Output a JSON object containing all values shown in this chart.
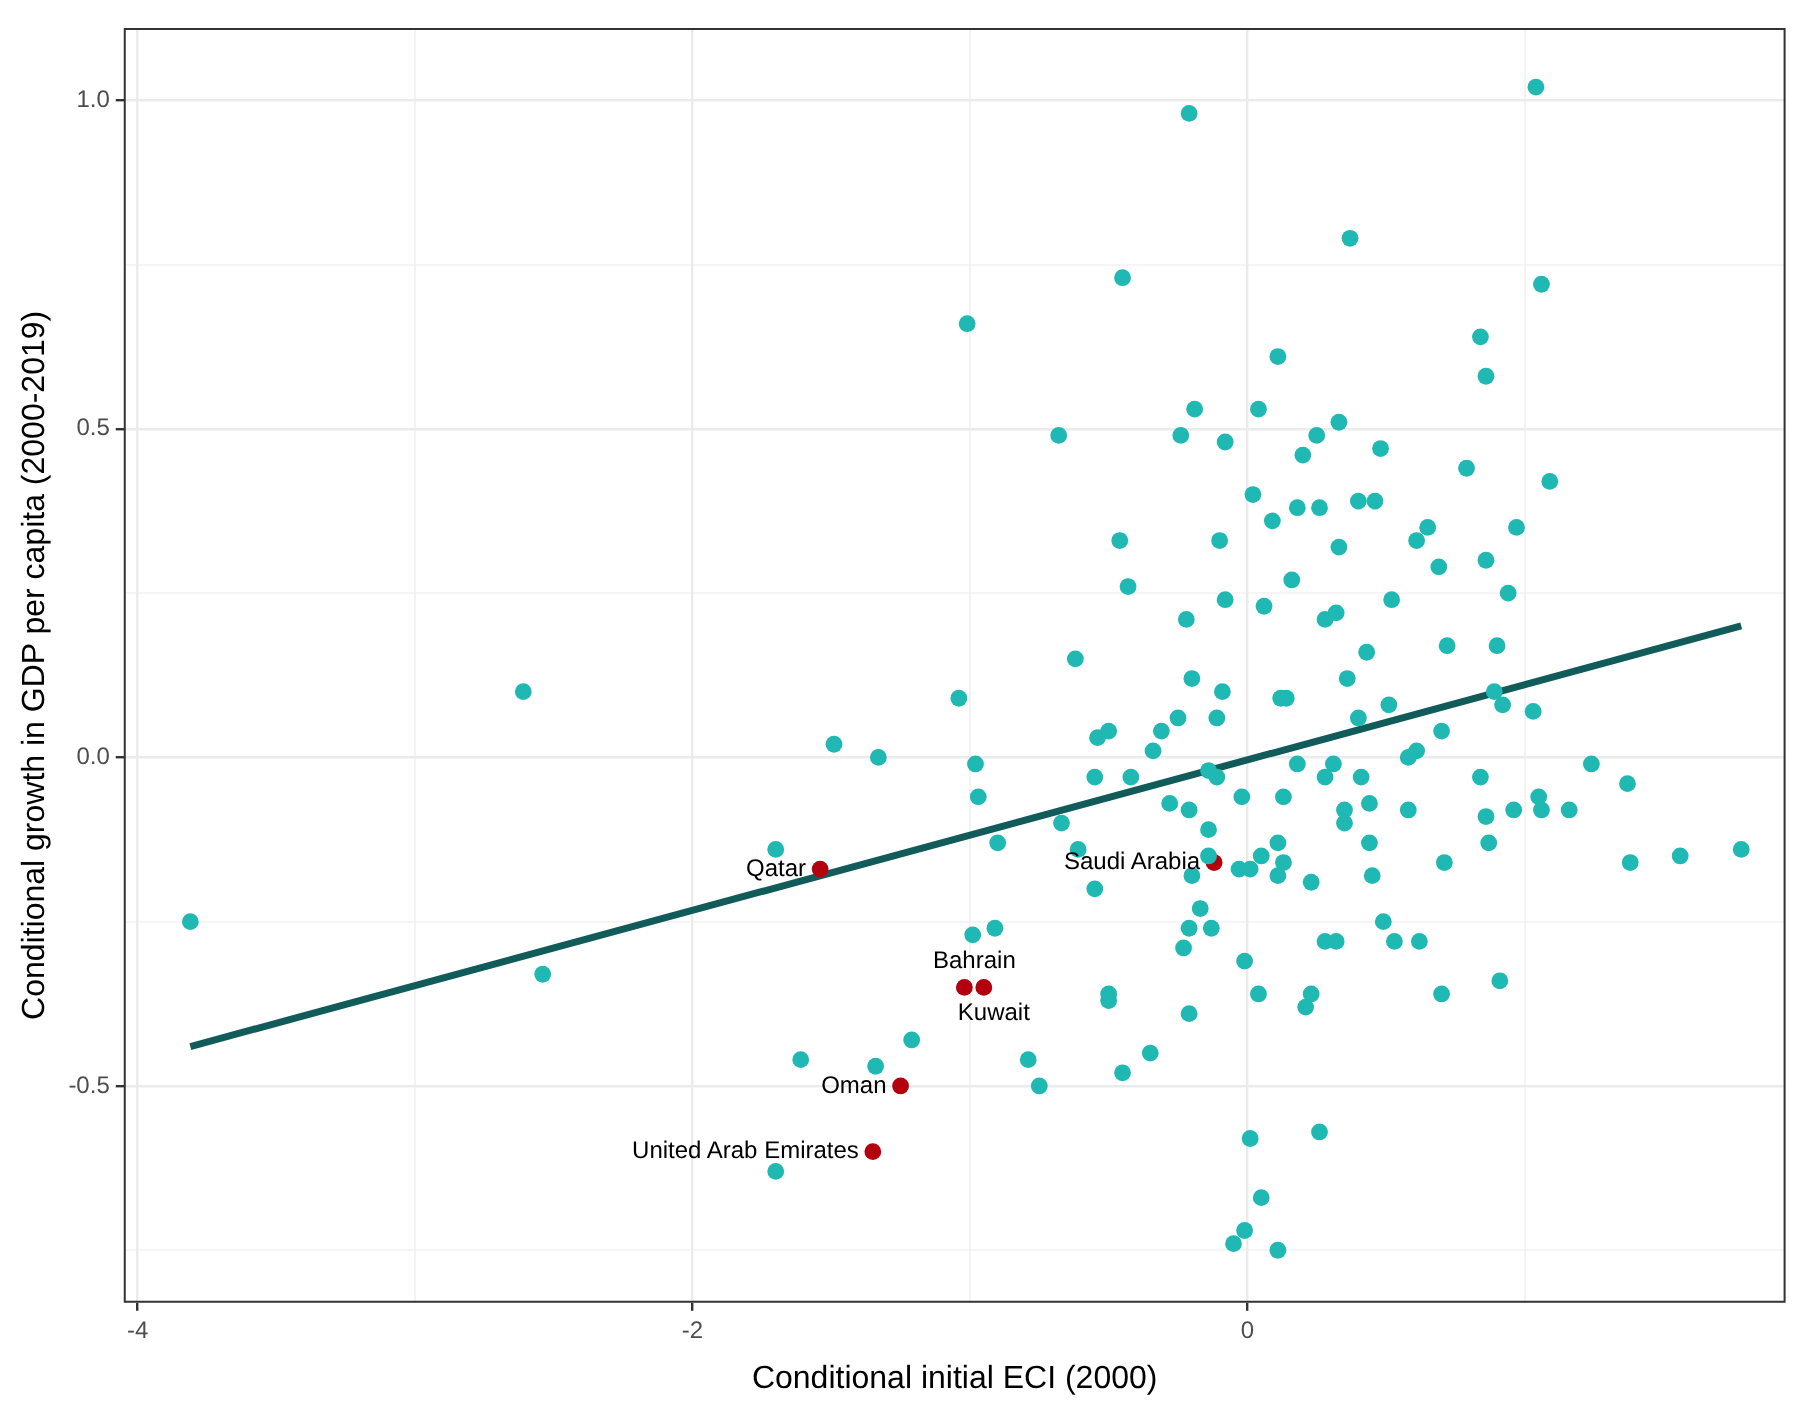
{
  "chart_data": {
    "type": "scatter",
    "xlabel": "Conditional initial ECI (2000)",
    "ylabel": "Conditional growth in GDP per capita (2000-2019)",
    "xlim": [
      -4.05,
      1.94
    ],
    "ylim": [
      -0.83,
      1.11
    ],
    "xticks": [
      -4,
      {
        "value": -3,
        "label": null
      },
      -2,
      {
        "value": -1,
        "label": null
      },
      0,
      {
        "value": 1,
        "label": null
      }
    ],
    "yticks": [
      {
        "value": -0.75,
        "label": null
      },
      -0.5,
      {
        "value": -0.25,
        "label": null
      },
      {
        "value": 0,
        "label": "0.0"
      },
      {
        "value": 0.25,
        "label": null
      },
      0.5,
      {
        "value": 0.75,
        "label": null
      },
      {
        "value": 1,
        "label": "1.0"
      }
    ],
    "grid": true,
    "marker": "circle",
    "series": [
      {
        "color": "#20b8b2",
        "x": [
          1.04,
          -0.21,
          0.37,
          -0.45,
          1.06,
          -1.01,
          0.84,
          0.11,
          0.86,
          -0.19,
          0.04,
          -0.68,
          -0.24,
          -0.08,
          0.33,
          0.25,
          0.2,
          0.48,
          0.79,
          1.09,
          0.02,
          0.18,
          0.26,
          0.4,
          0.46,
          0.09,
          -0.46,
          -0.1,
          0.65,
          0.61,
          0.97,
          0.33,
          0.69,
          0.86,
          -0.43,
          0.16,
          -0.08,
          0.06,
          0.52,
          0.94,
          -0.22,
          0.28,
          0.32,
          0.72,
          0.9,
          0.43,
          -0.62,
          -1.04,
          -0.2,
          -0.09,
          0.36,
          0.12,
          0.14,
          0.51,
          -0.25,
          -0.11,
          0.4,
          0.89,
          0.92,
          1.03,
          -0.5,
          -0.54,
          -0.31,
          0.7,
          -0.34,
          0.61,
          0.58,
          -1.33,
          -0.98,
          -0.14,
          -0.11,
          0.18,
          0.31,
          -0.55,
          -0.42,
          0.28,
          0.41,
          0.84,
          1.24,
          1.37,
          -0.97,
          -0.02,
          0.13,
          -0.28,
          -0.21,
          0.35,
          0.44,
          0.58,
          0.86,
          0.96,
          1.05,
          1.06,
          1.16,
          0.35,
          -0.67,
          -0.14,
          -0.9,
          0.11,
          0.44,
          0.87,
          -0.61,
          -0.14,
          0.05,
          0.13,
          -0.03,
          0.01,
          0.71,
          1.38,
          1.56,
          1.78,
          -0.2,
          0.11,
          0.23,
          0.45,
          -0.55,
          -0.17,
          0.49,
          -0.99,
          -0.91,
          -0.21,
          -0.13,
          -0.23,
          0.28,
          0.32,
          0.53,
          0.62,
          -0.01,
          0.91,
          -0.5,
          -0.5,
          0.04,
          0.23,
          0.7,
          -0.21,
          0.21,
          -1.21,
          -1.34,
          -0.79,
          -0.35,
          -0.45,
          -0.75,
          0.01,
          0.26,
          0.05,
          -0.01,
          -0.05,
          0.11,
          -2.61,
          -1.49,
          -1.7,
          -3.81,
          -2.54,
          -1.61,
          -1.7
        ],
        "values": [
          1.02,
          0.98,
          0.79,
          0.73,
          0.72,
          0.66,
          0.64,
          0.61,
          0.58,
          0.53,
          0.53,
          0.49,
          0.49,
          0.48,
          0.51,
          0.49,
          0.46,
          0.47,
          0.44,
          0.42,
          0.4,
          0.38,
          0.38,
          0.39,
          0.39,
          0.36,
          0.33,
          0.33,
          0.35,
          0.33,
          0.35,
          0.32,
          0.29,
          0.3,
          0.26,
          0.27,
          0.24,
          0.23,
          0.24,
          0.25,
          0.21,
          0.21,
          0.22,
          0.17,
          0.17,
          0.16,
          0.15,
          0.09,
          0.12,
          0.1,
          0.12,
          0.09,
          0.09,
          0.08,
          0.06,
          0.06,
          0.06,
          0.1,
          0.08,
          0.07,
          0.04,
          0.03,
          0.04,
          0.04,
          0.01,
          0.01,
          0,
          0,
          -0.01,
          -0.02,
          -0.03,
          -0.01,
          -0.01,
          -0.03,
          -0.03,
          -0.03,
          -0.03,
          -0.03,
          -0.01,
          -0.04,
          -0.06,
          -0.06,
          -0.06,
          -0.07,
          -0.08,
          -0.08,
          -0.07,
          -0.08,
          -0.09,
          -0.08,
          -0.06,
          -0.08,
          -0.08,
          -0.1,
          -0.1,
          -0.11,
          -0.13,
          -0.13,
          -0.13,
          -0.13,
          -0.14,
          -0.15,
          -0.15,
          -0.16,
          -0.17,
          -0.17,
          -0.16,
          -0.16,
          -0.15,
          -0.14,
          -0.18,
          -0.18,
          -0.19,
          -0.18,
          -0.2,
          -0.23,
          -0.25,
          -0.27,
          -0.26,
          -0.26,
          -0.26,
          -0.29,
          -0.28,
          -0.28,
          -0.28,
          -0.28,
          -0.31,
          -0.34,
          -0.36,
          -0.37,
          -0.36,
          -0.36,
          -0.36,
          -0.39,
          -0.38,
          -0.43,
          -0.47,
          -0.46,
          -0.45,
          -0.48,
          -0.5,
          -0.58,
          -0.57,
          -0.67,
          -0.72,
          -0.74,
          -0.75,
          0.1,
          0.02,
          -0.14,
          -0.25,
          -0.33,
          -0.46,
          -0.63
        ]
      },
      {
        "color": "#b2000f",
        "x": [
          -1.54,
          -0.12,
          -1.02,
          -0.95,
          -1.25,
          -1.35
        ],
        "values": [
          -0.17,
          -0.16,
          -0.35,
          -0.35,
          -0.5,
          -0.6
        ]
      },
      {
        "type": "line",
        "color": "#115c5a",
        "marker": "none",
        "x": [
          -3.81,
          1.78
        ],
        "values": [
          -0.44,
          0.2
        ]
      }
    ],
    "annotations": [
      {
        "text": "Qatar",
        "x": -1.54,
        "y": -0.17
      },
      {
        "text": "Saudi Arabia",
        "x": -0.12,
        "y": -0.16
      },
      {
        "text": "Bahrain",
        "x": -1.02,
        "y": -0.35
      },
      {
        "text": "Kuwait",
        "x": -0.95,
        "y": -0.35
      },
      {
        "text": "Oman",
        "x": -1.25,
        "y": -0.5
      },
      {
        "text": "United Arab Emirates",
        "x": -1.35,
        "y": -0.6
      }
    ]
  }
}
